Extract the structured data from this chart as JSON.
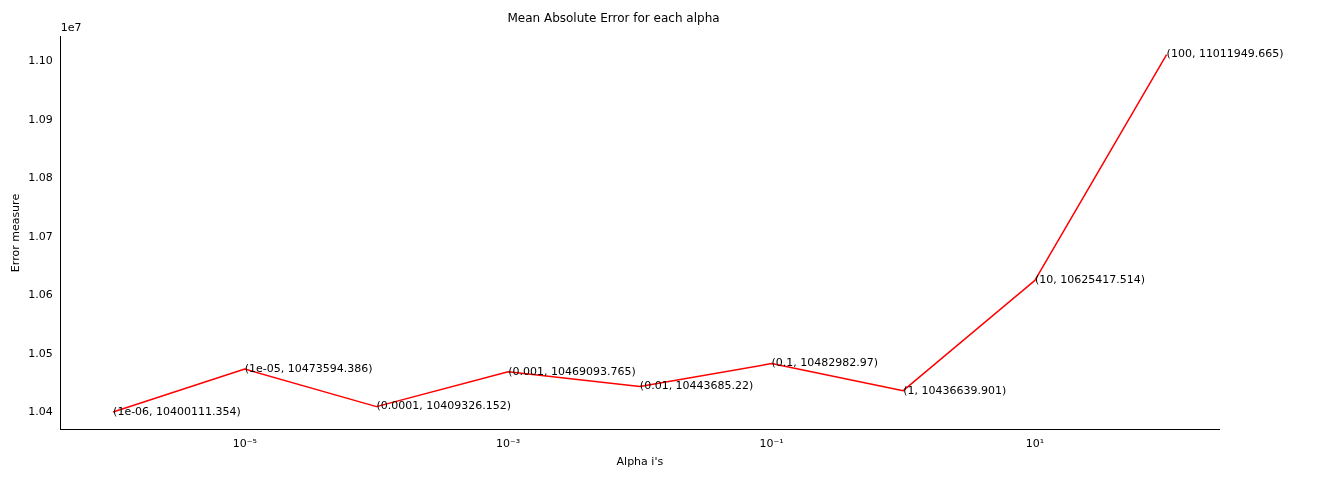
{
  "chart_data": {
    "type": "line",
    "title": "Mean Absolute Error for each alpha",
    "xlabel": "Alpha i's",
    "ylabel": "Error measure",
    "annotations": [
      "1e7"
    ],
    "x": [
      1e-06,
      1e-05,
      0.0001,
      0.001,
      0.01,
      0.1,
      1,
      10,
      100
    ],
    "series": [
      {
        "color": "#ff0000",
        "values": [
          1.0400111354,
          1.0473594386,
          1.0409326152,
          1.0469093765,
          1.044368522,
          1.048298297,
          1.0436639901,
          1.0625417514,
          1.1011949665
        ],
        "value_labels": [
          "(1e-06, 10400111.354)",
          "(1e-05, 10473594.386)",
          "(0.0001, 10409326.152)",
          "(0.001, 10469093.765)",
          "(0.01, 10443685.22)",
          "(0.1, 10482982.97)",
          "(1, 10436639.901)",
          "(10, 10625417.514)",
          "(100, 11011949.665)"
        ]
      }
    ],
    "log": "x",
    "xlim": [
      4e-07,
      250
    ],
    "xticks": [
      {
        "value": 1e-05,
        "label": "10⁻⁵"
      },
      {
        "value": 0.001,
        "label": "10⁻³"
      },
      {
        "value": 0.1,
        "label": "10⁻¹"
      },
      {
        "value": 10,
        "label": "10¹"
      }
    ],
    "ylim": [
      1.037,
      1.1043
    ],
    "yticks": [
      1.04,
      1.05,
      1.06,
      1.07,
      1.08,
      1.09,
      {
        "value": 1.1,
        "label": "1.10"
      }
    ],
    "grid": false,
    "legend": false
  }
}
